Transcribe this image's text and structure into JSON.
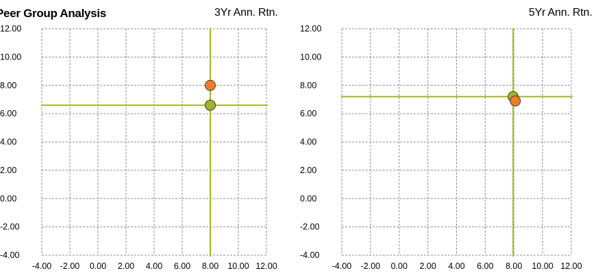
{
  "header": {
    "title": "Peer Group Analysis"
  },
  "colors": {
    "grid": "#8c8c8c",
    "crosshair": "#a6b51c",
    "point_orange": "#ee7d2a",
    "point_green": "#a3b22b",
    "point_stroke": "#3d3d1f"
  },
  "chart_data": [
    {
      "type": "scatter",
      "title": "3Yr Ann. Rtn.",
      "xlim": [
        -4,
        12
      ],
      "ylim": [
        -4,
        12
      ],
      "x_ticks": [
        "-4.00",
        "-2.00",
        "0.00",
        "2.00",
        "4.00",
        "6.00",
        "8.00",
        "10.00",
        "12.00"
      ],
      "y_ticks": [
        "12.00",
        "10.00",
        "8.00",
        "6.00",
        "4.00",
        "2.00",
        "0.00",
        "-2.00",
        "-4.00"
      ],
      "grid": true,
      "crosshair": {
        "x": 8.0,
        "y": 6.6
      },
      "points": [
        {
          "x": 8.0,
          "y": 8.0,
          "color": "#ee7d2a"
        },
        {
          "x": 8.0,
          "y": 6.6,
          "color": "#a3b22b"
        }
      ]
    },
    {
      "type": "scatter",
      "title": "5Yr Ann. Rtn.",
      "xlim": [
        -4,
        12
      ],
      "ylim": [
        -4,
        12
      ],
      "x_ticks": [
        "-4.00",
        "-2.00",
        "0.00",
        "2.00",
        "4.00",
        "6.00",
        "8.00",
        "10.00",
        "12.00"
      ],
      "y_ticks": [
        "12.00",
        "10.00",
        "8.00",
        "6.00",
        "4.00",
        "2.00",
        "0.00",
        "-2.00",
        "-4.00"
      ],
      "grid": true,
      "crosshair": {
        "x": 7.95,
        "y": 7.2
      },
      "points": [
        {
          "x": 7.95,
          "y": 7.2,
          "color": "#a3b22b"
        },
        {
          "x": 8.1,
          "y": 6.9,
          "color": "#ee7d2a"
        }
      ]
    }
  ]
}
